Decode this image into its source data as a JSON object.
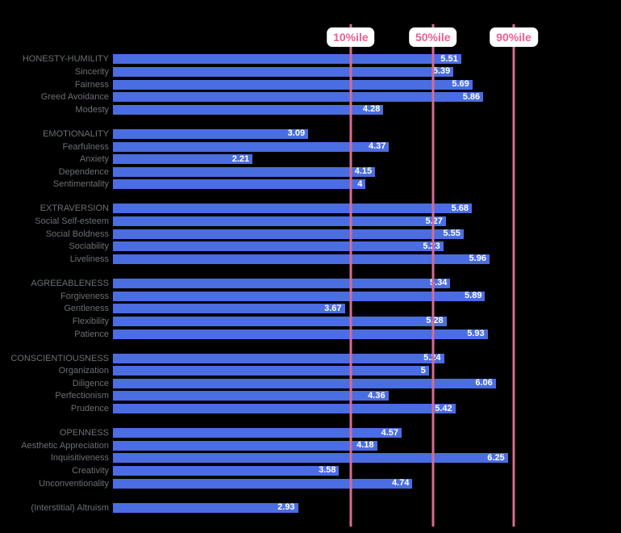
{
  "colors": {
    "bg": "#000000",
    "bar_fill": "#4a6de2",
    "bar_text": "#ffffff",
    "label_text": "#6b6f74",
    "marker_line": "#d66c92",
    "marker_text": "#ed5f93",
    "marker_box": "#ffffff"
  },
  "chart_data": {
    "type": "bar",
    "orientation": "horizontal",
    "xlim": [
      0,
      7
    ],
    "grid": false,
    "value_label_position": "inside-end",
    "markers": [
      {
        "label": "10%ile",
        "value": 3.7
      },
      {
        "label": "50%ile",
        "value": 5.0
      },
      {
        "label": "90%ile",
        "value": 6.28
      }
    ],
    "groups": [
      {
        "rows": [
          {
            "label": "HONESTY-HUMILITY",
            "value": 5.51
          },
          {
            "label": "Sincerity",
            "value": 5.39
          },
          {
            "label": "Fairness",
            "value": 5.69
          },
          {
            "label": "Greed Avoidance",
            "value": 5.86
          },
          {
            "label": "Modesty",
            "value": 4.28
          }
        ]
      },
      {
        "rows": [
          {
            "label": "EMOTIONALITY",
            "value": 3.09
          },
          {
            "label": "Fearfulness",
            "value": 4.37
          },
          {
            "label": "Anxiety",
            "value": 2.21
          },
          {
            "label": "Dependence",
            "value": 4.15
          },
          {
            "label": "Sentimentality",
            "value": 4
          }
        ]
      },
      {
        "rows": [
          {
            "label": "EXTRAVERSION",
            "value": 5.68
          },
          {
            "label": "Social Self-esteem",
            "value": 5.27
          },
          {
            "label": "Social Boldness",
            "value": 5.55
          },
          {
            "label": "Sociability",
            "value": 5.23
          },
          {
            "label": "Liveliness",
            "value": 5.96
          }
        ]
      },
      {
        "rows": [
          {
            "label": "AGREEABLENESS",
            "value": 5.34
          },
          {
            "label": "Forgiveness",
            "value": 5.89
          },
          {
            "label": "Gentleness",
            "value": 3.67
          },
          {
            "label": "Flexibility",
            "value": 5.28
          },
          {
            "label": "Patience",
            "value": 5.93
          }
        ]
      },
      {
        "rows": [
          {
            "label": "CONSCIENTIOUSNESS",
            "value": 5.24
          },
          {
            "label": "Organization",
            "value": 5
          },
          {
            "label": "Diligence",
            "value": 6.06
          },
          {
            "label": "Perfectionism",
            "value": 4.36
          },
          {
            "label": "Prudence",
            "value": 5.42
          }
        ]
      },
      {
        "rows": [
          {
            "label": "OPENNESS",
            "value": 4.57
          },
          {
            "label": "Aesthetic Appreciation",
            "value": 4.18
          },
          {
            "label": "Inquisitiveness",
            "value": 6.25
          },
          {
            "label": "Creativity",
            "value": 3.58
          },
          {
            "label": "Unconventionality",
            "value": 4.74
          }
        ]
      },
      {
        "rows": [
          {
            "label": "(Interstitial) Altruism",
            "value": 2.93
          }
        ]
      }
    ]
  }
}
